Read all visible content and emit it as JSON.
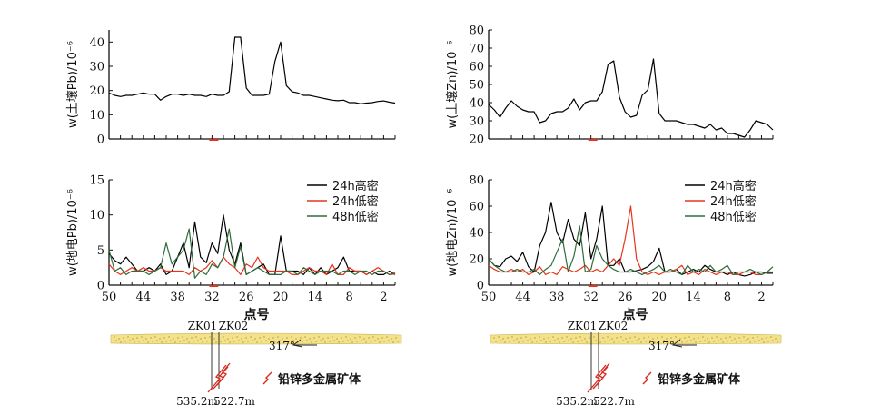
{
  "chart_data": [
    {
      "id": "soil_pb",
      "type": "line",
      "ylabel": "w(土壤Pb)/10⁻⁶",
      "ylim": [
        0,
        45
      ],
      "yticks": [
        0,
        10,
        20,
        30,
        40
      ],
      "xlim": [
        50,
        0
      ],
      "xticks": [],
      "series": [
        {
          "color": "#000000",
          "x": [
            50,
            49,
            48,
            47,
            46,
            45,
            44,
            43,
            42,
            41,
            40,
            39,
            38,
            37,
            36,
            35,
            34,
            33,
            32,
            31,
            30,
            29,
            28,
            27,
            26,
            25,
            24,
            23,
            22,
            21,
            20,
            19,
            18,
            17,
            16,
            15,
            14,
            13,
            12,
            11,
            10,
            9,
            8,
            7,
            6,
            5,
            4,
            3,
            2,
            1,
            0
          ],
          "values": [
            19,
            18,
            17.5,
            18,
            18,
            18.5,
            19,
            18.5,
            18.5,
            16,
            17.5,
            18.5,
            18.5,
            18,
            18.5,
            18,
            18,
            17.5,
            18.5,
            18,
            18,
            19.5,
            42,
            42,
            21,
            18,
            18,
            18,
            18.5,
            32,
            40,
            22,
            19.5,
            19,
            18,
            18,
            17.5,
            17,
            16.5,
            16,
            15.8,
            16,
            15,
            15,
            14.5,
            14.8,
            15,
            15.5,
            15.7,
            15.2,
            14.8
          ]
        }
      ]
    },
    {
      "id": "soil_zn",
      "type": "line",
      "ylabel": "w(土壤Zn)/10⁻⁶",
      "ylim": [
        20,
        80
      ],
      "yticks": [
        20,
        30,
        40,
        50,
        60,
        70,
        80
      ],
      "xlim": [
        50,
        0
      ],
      "xticks": [],
      "series": [
        {
          "color": "#000000",
          "x": [
            50,
            49,
            48,
            47,
            46,
            45,
            44,
            43,
            42,
            41,
            40,
            39,
            38,
            37,
            36,
            35,
            34,
            33,
            32,
            31,
            30,
            29,
            28,
            27,
            26,
            25,
            24,
            23,
            22,
            21,
            20,
            19,
            18,
            17,
            16,
            15,
            14,
            13,
            12,
            11,
            10,
            9,
            8,
            7,
            6,
            5,
            4,
            3,
            2,
            1,
            0
          ],
          "values": [
            39,
            36,
            32,
            37,
            41,
            38,
            36,
            35,
            35,
            29,
            30,
            34,
            35,
            35,
            37,
            42,
            36,
            40,
            41,
            41,
            46,
            61,
            63,
            43,
            35,
            32,
            33,
            44,
            47,
            64,
            34,
            30,
            30,
            30,
            29,
            28,
            28,
            27,
            26,
            28,
            25,
            26,
            23,
            23,
            22,
            21,
            25,
            30,
            29,
            28,
            25
          ]
        }
      ]
    },
    {
      "id": "geo_pb",
      "type": "line",
      "ylabel": "w(地电Pb)/10⁻⁶",
      "ylim": [
        0,
        15
      ],
      "yticks": [
        0,
        5,
        10,
        15
      ],
      "xlim": [
        50,
        0
      ],
      "xticks": [
        50,
        44,
        38,
        32,
        26,
        20,
        14,
        8,
        2
      ],
      "xlabel": "点号",
      "legend_position": "top-right",
      "series": [
        {
          "name": "24h高密",
          "color": "#000000",
          "x": [
            50,
            49,
            48,
            47,
            46,
            45,
            44,
            43,
            42,
            41,
            40,
            39,
            38,
            37,
            36,
            35,
            34,
            33,
            32,
            31,
            30,
            29,
            28,
            27,
            26,
            25,
            24,
            23,
            22,
            21,
            20,
            19,
            18,
            17,
            16,
            15,
            14,
            13,
            12,
            11,
            10,
            9,
            8,
            7,
            6,
            5,
            4,
            3,
            2,
            1,
            0
          ],
          "values": [
            4.5,
            3.5,
            3,
            4,
            3,
            2,
            2,
            2.5,
            2,
            3,
            1.5,
            2,
            4,
            6,
            2.5,
            9,
            4,
            3.2,
            6,
            4.5,
            10,
            5,
            3,
            6,
            1.5,
            2,
            2.5,
            3,
            1.5,
            1.5,
            7,
            2,
            2,
            2,
            1.5,
            2.5,
            1.5,
            2.5,
            1.5,
            2,
            2.5,
            4,
            2,
            2,
            2,
            1.5,
            2,
            1.5,
            1.5,
            2,
            1.5
          ]
        },
        {
          "name": "24h低密",
          "color": "#e8331c",
          "x": [
            50,
            49,
            48,
            47,
            46,
            45,
            44,
            43,
            42,
            41,
            40,
            39,
            38,
            37,
            36,
            35,
            34,
            33,
            32,
            31,
            30,
            29,
            28,
            27,
            26,
            25,
            24,
            23,
            22,
            21,
            20,
            19,
            18,
            17,
            16,
            15,
            14,
            13,
            12,
            11,
            10,
            9,
            8,
            7,
            6,
            5,
            4,
            3,
            2,
            1,
            0
          ],
          "values": [
            3,
            2,
            1.5,
            2,
            2.5,
            2,
            2.5,
            2,
            2,
            2.5,
            2,
            2,
            2,
            2,
            1.5,
            2.5,
            2,
            2.5,
            3.5,
            2.5,
            4,
            3,
            2.5,
            1.5,
            3,
            2.5,
            4,
            2.5,
            2,
            2,
            2,
            2,
            1.5,
            1.5,
            2,
            2.5,
            2,
            2,
            1.5,
            3,
            1.5,
            1.5,
            2.5,
            2,
            2,
            1.5,
            2,
            2.5,
            2,
            1.5,
            1.8
          ]
        },
        {
          "name": "48h低密",
          "color": "#2f6b3a",
          "x": [
            50,
            49,
            48,
            47,
            46,
            45,
            44,
            43,
            42,
            41,
            40,
            39,
            38,
            37,
            36,
            35,
            34,
            33,
            32,
            31,
            30,
            29,
            28,
            27,
            26,
            25,
            24,
            23,
            22,
            21,
            20,
            19,
            18,
            17,
            16,
            15,
            14,
            13,
            12,
            11,
            10,
            9,
            8,
            7,
            6,
            5,
            4,
            3,
            2,
            1,
            0
          ],
          "values": [
            5,
            2,
            2.5,
            1.5,
            2,
            2,
            2,
            1.5,
            2,
            2.5,
            6,
            3,
            4,
            5,
            8,
            1,
            2,
            1.5,
            3,
            2.5,
            4,
            8,
            2.5,
            5.5,
            1.5,
            2,
            2.5,
            2,
            1.5,
            1.5,
            1.5,
            2,
            2,
            1.5,
            2.5,
            2,
            1.5,
            2,
            2,
            2,
            1.5,
            2,
            2,
            1.5,
            2,
            2,
            1.5,
            2,
            2,
            1.5,
            1.6
          ]
        }
      ]
    },
    {
      "id": "geo_zn",
      "type": "line",
      "ylabel": "w(地电Zn)/10⁻⁶",
      "ylim": [
        0,
        80
      ],
      "yticks": [
        0,
        20,
        40,
        60,
        80
      ],
      "xlim": [
        50,
        0
      ],
      "xticks": [
        50,
        44,
        38,
        32,
        26,
        20,
        14,
        8,
        2
      ],
      "xlabel": "点号",
      "legend_position": "top-right",
      "series": [
        {
          "name": "24h高密",
          "color": "#000000",
          "x": [
            50,
            49,
            48,
            47,
            46,
            45,
            44,
            43,
            42,
            41,
            40,
            39,
            38,
            37,
            36,
            35,
            34,
            33,
            32,
            31,
            30,
            29,
            28,
            27,
            26,
            25,
            24,
            23,
            22,
            21,
            20,
            19,
            18,
            17,
            16,
            15,
            14,
            13,
            12,
            11,
            10,
            9,
            8,
            7,
            6,
            5,
            4,
            3,
            2,
            1,
            0
          ],
          "values": [
            20,
            15,
            14,
            20,
            22,
            18,
            25,
            14,
            10,
            30,
            40,
            63,
            40,
            32,
            50,
            35,
            30,
            55,
            20,
            35,
            60,
            15,
            15,
            20,
            10,
            10,
            11,
            12,
            14,
            18,
            28,
            10,
            10,
            12,
            8,
            10,
            12,
            10,
            15,
            12,
            10,
            10,
            8,
            10,
            8,
            7,
            8,
            10,
            10,
            9,
            9
          ]
        },
        {
          "name": "24h低密",
          "color": "#e8331c",
          "x": [
            50,
            49,
            48,
            47,
            46,
            45,
            44,
            43,
            42,
            41,
            40,
            39,
            38,
            37,
            36,
            35,
            34,
            33,
            32,
            31,
            30,
            29,
            28,
            27,
            26,
            25,
            24,
            23,
            22,
            21,
            20,
            19,
            18,
            17,
            16,
            15,
            14,
            13,
            12,
            11,
            10,
            9,
            8,
            7,
            6,
            5,
            4,
            3,
            2,
            1,
            0
          ],
          "values": [
            15,
            12,
            10,
            10,
            12,
            10,
            12,
            8,
            10,
            14,
            8,
            10,
            8,
            14,
            12,
            10,
            12,
            15,
            10,
            12,
            10,
            15,
            20,
            15,
            35,
            60,
            20,
            10,
            8,
            10,
            8,
            10,
            10,
            12,
            15,
            8,
            10,
            8,
            12,
            10,
            8,
            10,
            10,
            8,
            8,
            10,
            10,
            8,
            8,
            10,
            10
          ]
        },
        {
          "name": "48h低密",
          "color": "#2f6b3a",
          "x": [
            50,
            49,
            48,
            47,
            46,
            45,
            44,
            43,
            42,
            41,
            40,
            39,
            38,
            37,
            36,
            35,
            34,
            33,
            32,
            31,
            30,
            29,
            28,
            27,
            26,
            25,
            24,
            23,
            22,
            21,
            20,
            19,
            18,
            17,
            16,
            15,
            14,
            13,
            12,
            11,
            10,
            9,
            8,
            7,
            6,
            5,
            4,
            3,
            2,
            1,
            0
          ],
          "values": [
            20,
            15,
            12,
            10,
            10,
            12,
            10,
            10,
            12,
            8,
            12,
            15,
            25,
            35,
            10,
            22,
            45,
            10,
            12,
            30,
            20,
            15,
            12,
            10,
            10,
            12,
            10,
            8,
            10,
            12,
            15,
            10,
            12,
            10,
            8,
            15,
            10,
            12,
            10,
            15,
            10,
            12,
            15,
            8,
            10,
            10,
            12,
            10,
            8,
            10,
            14
          ]
        }
      ]
    }
  ],
  "sections": [
    {
      "borehole_labels": [
        "ZK01",
        "ZK02"
      ],
      "angle_label": "317°",
      "legend_label": "铅锌多金属矿体",
      "depth_labels": [
        "535.2m",
        "522.7m"
      ]
    },
    {
      "borehole_labels": [
        "ZK01",
        "ZK02"
      ],
      "angle_label": "317°",
      "legend_label": "铅锌多金属矿体",
      "depth_labels": [
        "535.2m",
        "522.7m"
      ]
    }
  ],
  "colors": {
    "axis": "#111111",
    "marker": "#e8331c",
    "ore_body": "#d9281c",
    "overburden": "#f3e28a",
    "overburden_dots": "#8a7a2a"
  }
}
